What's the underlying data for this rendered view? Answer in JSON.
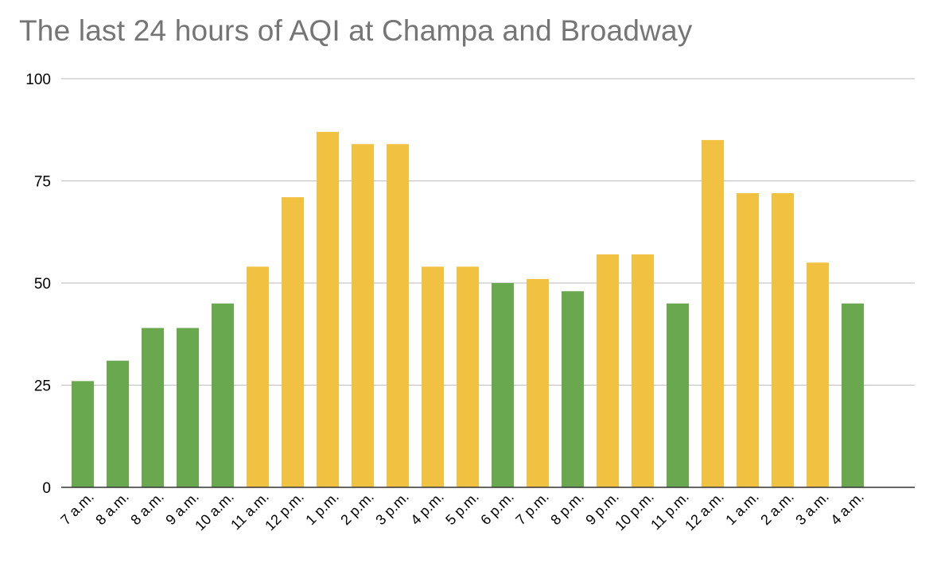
{
  "chart_data": {
    "type": "bar",
    "title": "The last 24 hours of AQI at Champa and Broadway",
    "xlabel": "",
    "ylabel": "",
    "ylim": [
      0,
      100
    ],
    "yticks": [
      0,
      25,
      50,
      75,
      100
    ],
    "grid": true,
    "legend": "none",
    "categories": [
      "7 a.m.",
      "8 a.m.",
      "8 a.m.",
      "9 a.m.",
      "10 a.m.",
      "11 a.m.",
      "12 p.m.",
      "1 p.m.",
      "2 p.m.",
      "3 p.m.",
      "4 p.m.",
      "5 p.m.",
      "6 p.m.",
      "7 p.m.",
      "8 p.m.",
      "9 p.m.",
      "10 p.m.",
      "11 p.m.",
      "12 a.m.",
      "1 a.m.",
      "2 a.m.",
      "3 a.m.",
      "4 a.m."
    ],
    "values": [
      26,
      31,
      39,
      39,
      45,
      54,
      71,
      87,
      84,
      84,
      54,
      54,
      50,
      51,
      48,
      57,
      57,
      45,
      85,
      72,
      72,
      55,
      45
    ],
    "bar_colors": [
      "#6aa84f",
      "#6aa84f",
      "#6aa84f",
      "#6aa84f",
      "#6aa84f",
      "#f1c142",
      "#f1c142",
      "#f1c142",
      "#f1c142",
      "#f1c142",
      "#f1c142",
      "#f1c142",
      "#6aa84f",
      "#f1c142",
      "#6aa84f",
      "#f1c142",
      "#f1c142",
      "#6aa84f",
      "#f1c142",
      "#f1c142",
      "#f1c142",
      "#f1c142",
      "#6aa84f"
    ]
  }
}
